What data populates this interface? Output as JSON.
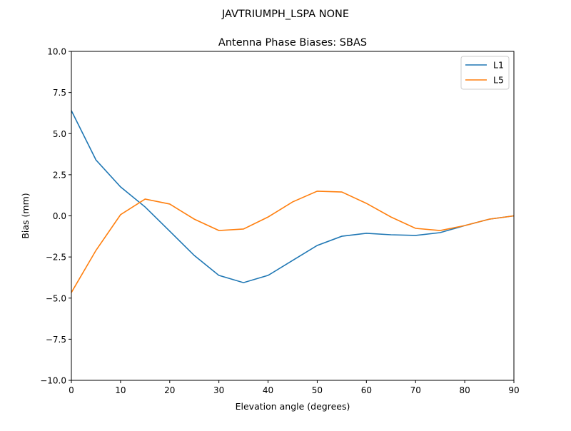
{
  "chart_data": {
    "type": "line",
    "suptitle": "JAVTRIUMPH_LSPA NONE",
    "title": "Antenna Phase Biases: SBAS",
    "xlabel": "Elevation angle (degrees)",
    "ylabel": "Bias (mm)",
    "xlim": [
      0,
      90
    ],
    "ylim": [
      -10,
      10
    ],
    "xticks": [
      0,
      10,
      20,
      30,
      40,
      50,
      60,
      70,
      80,
      90
    ],
    "xtick_labels": [
      "0",
      "10",
      "20",
      "30",
      "40",
      "50",
      "60",
      "70",
      "80",
      "90"
    ],
    "yticks": [
      -10,
      -7.5,
      -5,
      -2.5,
      0,
      2.5,
      5,
      7.5,
      10
    ],
    "ytick_labels": [
      "−10.0",
      "−7.5",
      "−5.0",
      "−2.5",
      "0.0",
      "2.5",
      "5.0",
      "7.5",
      "10.0"
    ],
    "grid": false,
    "legend_position": "top-right",
    "x": [
      0,
      5,
      10,
      15,
      20,
      25,
      30,
      35,
      40,
      45,
      50,
      55,
      60,
      65,
      70,
      75,
      80,
      85,
      90
    ],
    "series": [
      {
        "name": "L1",
        "color": "#1f77b4",
        "values": [
          6.4,
          3.4,
          1.76,
          0.54,
          -0.93,
          -2.41,
          -3.62,
          -4.06,
          -3.62,
          -2.71,
          -1.8,
          -1.24,
          -1.06,
          -1.15,
          -1.19,
          -1.02,
          -0.59,
          -0.2,
          0.0
        ]
      },
      {
        "name": "L5",
        "color": "#ff7f0e",
        "values": [
          -4.66,
          -2.1,
          0.07,
          1.02,
          0.72,
          -0.2,
          -0.89,
          -0.8,
          -0.07,
          0.85,
          1.5,
          1.45,
          0.76,
          -0.07,
          -0.76,
          -0.89,
          -0.59,
          -0.2,
          0.0
        ]
      }
    ]
  }
}
